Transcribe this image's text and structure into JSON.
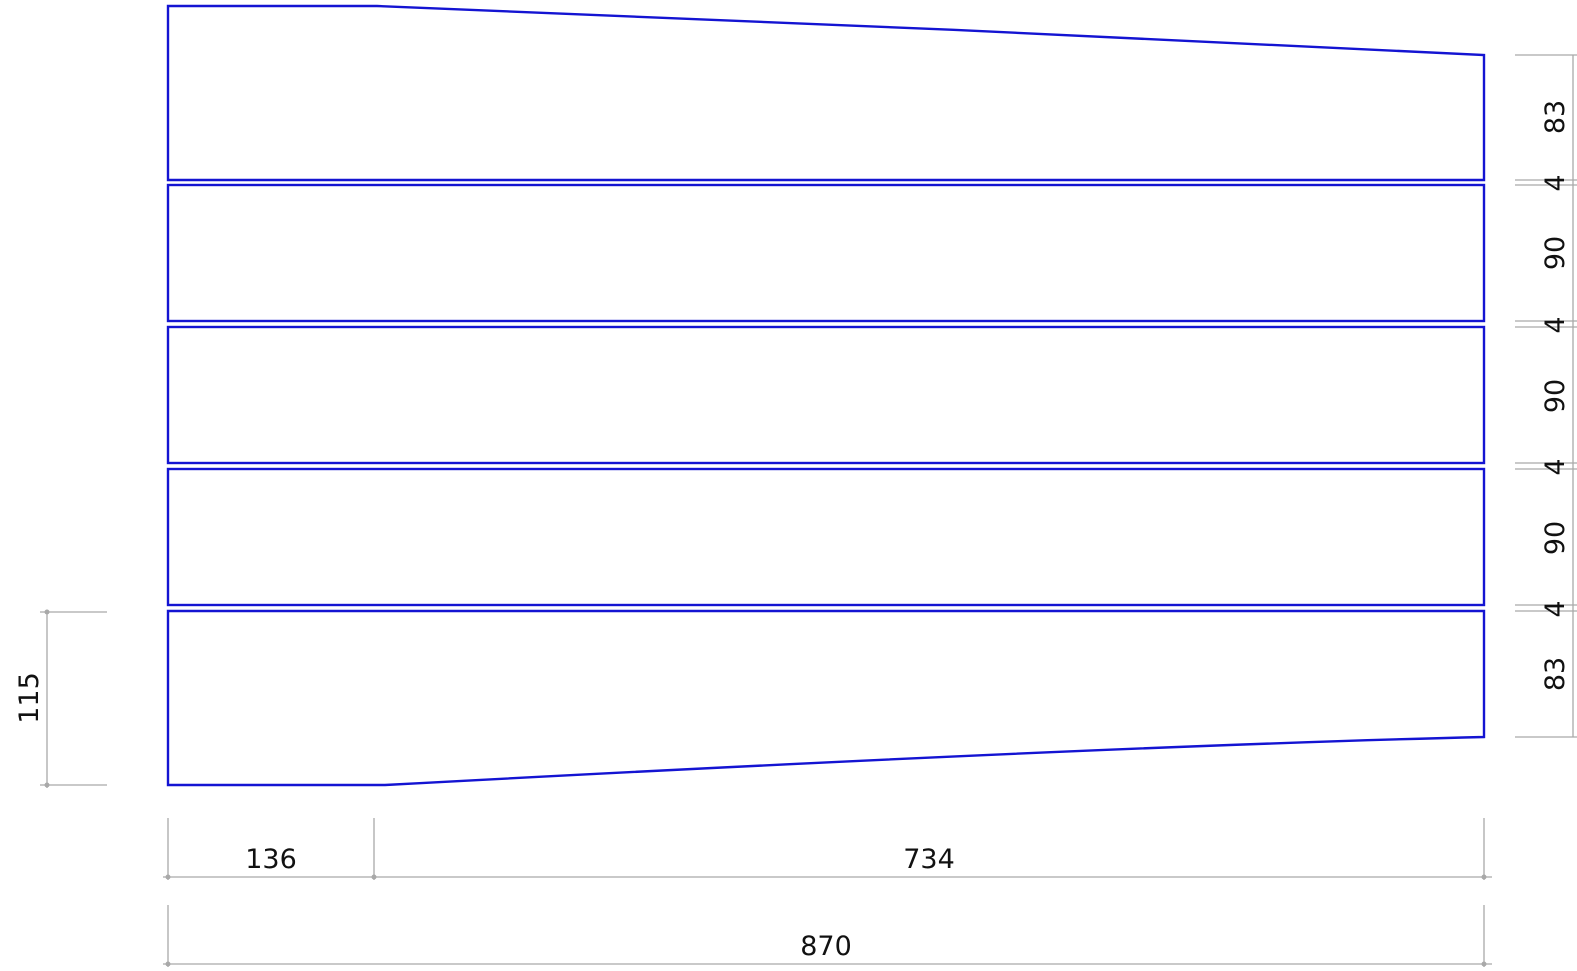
{
  "colors": {
    "plank_stroke": "#1414d2",
    "dimension_stroke": "#a9a9a9",
    "text": "#111111"
  },
  "right_dimensions": [
    "83",
    "4",
    "90",
    "4",
    "90",
    "4",
    "90",
    "4",
    "83"
  ],
  "left_dimension": "115",
  "bottom_dimensions": {
    "segment_1": "136",
    "segment_2": "734",
    "total": "870"
  }
}
